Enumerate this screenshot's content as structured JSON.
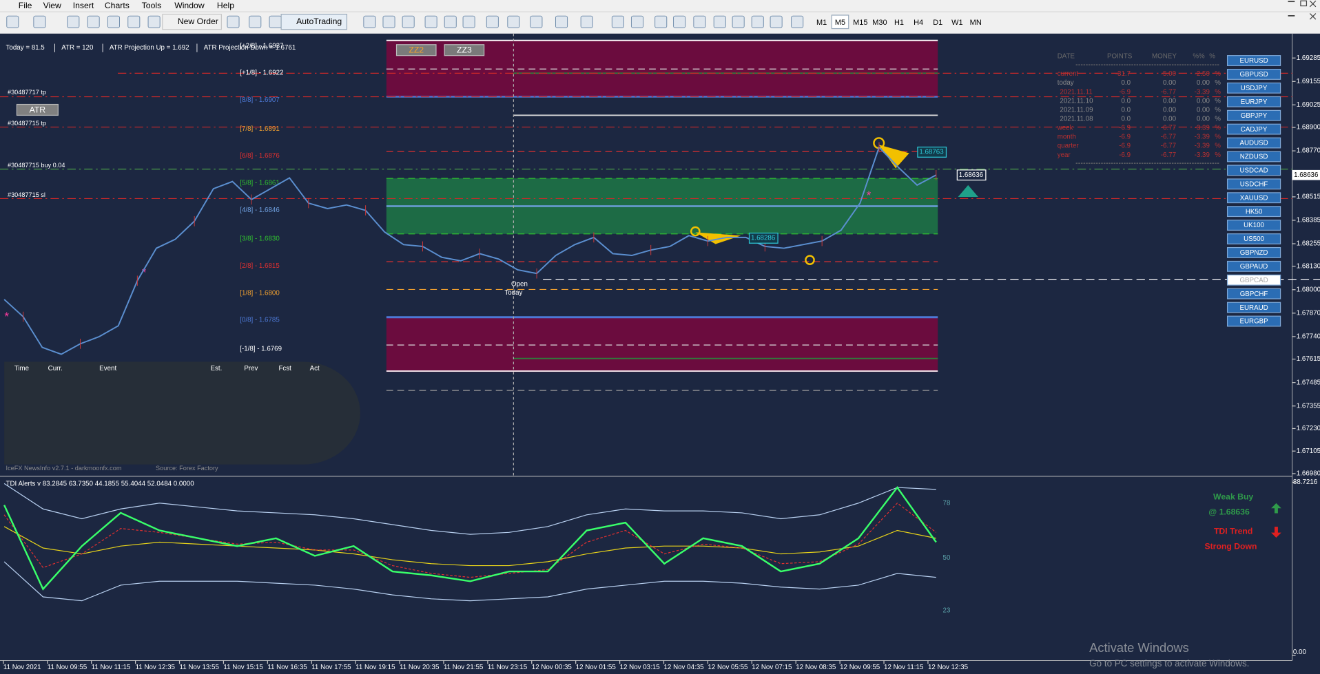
{
  "menu": [
    "File",
    "View",
    "Insert",
    "Charts",
    "Tools",
    "Window",
    "Help"
  ],
  "toolbar": {
    "new_order": "New Order",
    "autotrading": "AutoTrading",
    "timeframes": [
      "M1",
      "M5",
      "M15",
      "M30",
      "H1",
      "H4",
      "D1",
      "W1",
      "MN"
    ]
  },
  "chart": {
    "info": [
      "Today = 81.5",
      "ATR = 120",
      "ATR Projection Up = 1.692",
      "ATR Projection Down = 1.6761"
    ],
    "buttons": [
      "ATR",
      "ZZ2",
      "ZZ3"
    ],
    "orders": [
      "#30487717 tp",
      "#30487715 tp",
      "#30487715 buy 0.04",
      "#30487715 sl"
    ],
    "murrey": [
      {
        "label": "[+2/8] - 1.6937",
        "price": 1.6937,
        "color": "#ffffff"
      },
      {
        "label": "[+1/8] - 1.6922",
        "price": 1.6922,
        "color": "#ffffff"
      },
      {
        "label": "[8/8] - 1.6907",
        "price": 1.6907,
        "color": "#4d79d6"
      },
      {
        "label": "[7/8] - 1.6891",
        "price": 1.6891,
        "color": "#f0a030"
      },
      {
        "label": "[6/8] - 1.6876",
        "price": 1.6876,
        "color": "#e03030"
      },
      {
        "label": "[5/8] - 1.6861",
        "price": 1.6861,
        "color": "#30c030"
      },
      {
        "label": "[4/8] - 1.6846",
        "price": 1.6846,
        "color": "#6fa0e0"
      },
      {
        "label": "[3/8] - 1.6830",
        "price": 1.683,
        "color": "#30c030"
      },
      {
        "label": "[2/8] - 1.6815",
        "price": 1.6815,
        "color": "#e03030"
      },
      {
        "label": "[1/8] - 1.6800",
        "price": 1.68,
        "color": "#f0a030"
      },
      {
        "label": "[0/8] - 1.6785",
        "price": 1.6785,
        "color": "#4d79d6"
      },
      {
        "label": "[-1/8] - 1.6769",
        "price": 1.6769,
        "color": "#ffffff"
      }
    ],
    "ylim": [
      1.6697,
      1.6942
    ],
    "yticks": [
      {
        "value": 1.69285,
        "label": "1.69285"
      },
      {
        "value": 1.69155,
        "label": "1.69155"
      },
      {
        "value": 1.69025,
        "label": "1.69025"
      },
      {
        "value": 1.689,
        "label": "1.68900"
      },
      {
        "value": 1.6877,
        "label": "1.68770"
      },
      {
        "value": 1.68515,
        "label": "1.68515"
      },
      {
        "value": 1.68385,
        "label": "1.68385"
      },
      {
        "value": 1.68255,
        "label": "1.68255"
      },
      {
        "value": 1.6813,
        "label": "1.68130"
      },
      {
        "value": 1.68,
        "label": "1.68000"
      },
      {
        "value": 1.6787,
        "label": "1.67870"
      },
      {
        "value": 1.6774,
        "label": "1.67740"
      },
      {
        "value": 1.67615,
        "label": "1.67615"
      },
      {
        "value": 1.67485,
        "label": "1.67485"
      },
      {
        "value": 1.67355,
        "label": "1.67355"
      },
      {
        "value": 1.6723,
        "label": "1.67230"
      },
      {
        "value": 1.67105,
        "label": "1.67105"
      },
      {
        "value": 1.6698,
        "label": "1.66980"
      }
    ],
    "price": {
      "color": "#5b8fd0",
      "values": [
        1.67946,
        1.6785,
        1.6768,
        1.67642,
        1.677,
        1.6774,
        1.678,
        1.6805,
        1.6823,
        1.6828,
        1.6838,
        1.6856,
        1.686,
        1.685,
        1.6856,
        1.6862,
        1.6848,
        1.6845,
        1.6847,
        1.6844,
        1.6832,
        1.6825,
        1.6824,
        1.6818,
        1.6816,
        1.682,
        1.6817,
        1.6811,
        1.6809,
        1.6819,
        1.6825,
        1.6829,
        1.682,
        1.6819,
        1.6822,
        1.6824,
        1.683,
        1.6827,
        1.6829,
        1.6829,
        1.6824,
        1.6823,
        1.6825,
        1.6827,
        1.6833,
        1.6848,
        1.6879,
        1.6868,
        1.6858,
        1.68636
      ]
    },
    "current_price": {
      "value": 1.68636,
      "label": "1.68636"
    },
    "tags": [
      {
        "value": 1.68763,
        "label": "1.68763"
      },
      {
        "value": 1.68636,
        "label": "1.68636"
      },
      {
        "value": 1.68286,
        "label": "1.68286"
      }
    ],
    "open_label": "Open",
    "today_label": "Today",
    "xticks": [
      "11 Nov 2021",
      "11 Nov 09:55",
      "11 Nov 11:15",
      "11 Nov 12:35",
      "11 Nov 13:55",
      "11 Nov 15:15",
      "11 Nov 16:35",
      "11 Nov 17:55",
      "11 Nov 19:15",
      "11 Nov 20:35",
      "11 Nov 21:55",
      "11 Nov 23:15",
      "12 Nov 00:35",
      "12 Nov 01:55",
      "12 Nov 03:15",
      "12 Nov 04:35",
      "12 Nov 05:55",
      "12 Nov 07:15",
      "12 Nov 08:35",
      "12 Nov 09:55",
      "12 Nov 11:15",
      "12 Nov 12:35"
    ]
  },
  "news": {
    "headers": [
      "Time",
      "Curr.",
      "Event",
      "Est.",
      "Prev",
      "Fcst",
      "Act"
    ],
    "footer": "IceFX NewsInfo v2.7.1 - darkmoonfx.com",
    "source": "Source: Forex Factory"
  },
  "stats": {
    "headers": [
      "DATE",
      "POINTS",
      "MONEY",
      "%%",
      "%"
    ],
    "rows": [
      {
        "cells": [
          "current",
          "-31.7",
          "-5.00",
          "-2.50",
          "%"
        ],
        "color": "#b83030"
      },
      {
        "cells": [
          "today",
          "0.0",
          "0.00",
          "0.00",
          "%"
        ],
        "color": "#8a8a8a"
      },
      {
        "cells": [
          "2021.11.11",
          "-6.9",
          "-6.77",
          "-3.39",
          "%"
        ],
        "color": "#b83030"
      },
      {
        "cells": [
          "2021.11.10",
          "0.0",
          "0.00",
          "0.00",
          "%"
        ],
        "color": "#8a8a8a"
      },
      {
        "cells": [
          "2021.11.09",
          "0.0",
          "0.00",
          "0.00",
          "%"
        ],
        "color": "#8a8a8a"
      },
      {
        "cells": [
          "2021.11.08",
          "0.0",
          "0.00",
          "0.00",
          "%"
        ],
        "color": "#8a8a8a"
      },
      {
        "cells": [
          "week",
          "-6.9",
          "-6.77",
          "-3.39",
          "%"
        ],
        "color": "#b83030"
      },
      {
        "cells": [
          "month",
          "-6.9",
          "-6.77",
          "-3.39",
          "%"
        ],
        "color": "#b83030"
      },
      {
        "cells": [
          "quarter",
          "-6.9",
          "-6.77",
          "-3.39",
          "%"
        ],
        "color": "#b83030"
      },
      {
        "cells": [
          "year",
          "-6.9",
          "-6.77",
          "-3.39",
          "%"
        ],
        "color": "#b83030"
      }
    ]
  },
  "symbols": [
    "EURUSD",
    "GBPUSD",
    "USDJPY",
    "EURJPY",
    "GBPJPY",
    "CADJPY",
    "AUDUSD",
    "NZDUSD",
    "USDCAD",
    "USDCHF",
    "XAUUSD",
    "HK50",
    "UK100",
    "US500",
    "GBPNZD",
    "GBPAUD",
    "GBPCAD",
    "GBPCHF",
    "EURAUD",
    "EURGBP"
  ],
  "active_symbol": "GBPCAD",
  "tdi": {
    "title": "TDI Alerts v 83.2845 63.7350 44.1855 55.4044 52.0484 0.0000",
    "ylim": [
      0,
      88.7216
    ],
    "yticks": [
      {
        "value": 88.7216,
        "label": "88.7216"
      },
      78,
      50,
      23,
      {
        "value": 0,
        "label": "0.00"
      }
    ],
    "series": [
      {
        "name": "upper",
        "color": "#b8d0f0",
        "values": [
          88,
          75,
          70,
          75,
          78,
          76,
          74,
          73,
          72,
          70,
          67,
          64,
          62,
          63,
          66,
          72,
          75,
          74,
          74,
          73,
          70,
          72,
          78,
          86,
          85
        ]
      },
      {
        "name": "lower",
        "color": "#b8d0f0",
        "values": [
          48,
          30,
          28,
          36,
          38,
          38,
          38,
          37,
          36,
          34,
          31,
          29,
          28,
          29,
          30,
          34,
          36,
          38,
          38,
          37,
          35,
          34,
          36,
          42,
          40
        ]
      },
      {
        "name": "slow",
        "color": "#e6d21a",
        "values": [
          66,
          55,
          52,
          56,
          58,
          57,
          56,
          55,
          54,
          52,
          49,
          47,
          46,
          46,
          48,
          52,
          55,
          56,
          56,
          55,
          52,
          53,
          56,
          64,
          60
        ]
      },
      {
        "name": "signal",
        "color": "#e03030",
        "values": [
          72,
          45,
          52,
          65,
          63,
          60,
          57,
          58,
          54,
          54,
          46,
          42,
          40,
          42,
          44,
          58,
          64,
          52,
          57,
          55,
          47,
          48,
          57,
          78,
          63
        ]
      },
      {
        "name": "rsi",
        "color": "#39ff6a",
        "values": [
          77,
          34,
          56,
          73,
          64,
          60,
          56,
          60,
          51,
          56,
          43,
          41,
          38,
          43,
          43,
          64,
          68,
          47,
          60,
          56,
          43,
          47,
          60,
          86,
          58
        ]
      }
    ],
    "signal": {
      "status": "Weak Buy",
      "price": "@ 1.68636",
      "trend": "TDI Trend",
      "trend_status": "Strong Down"
    }
  },
  "watermark": {
    "title": "Activate Windows",
    "subtitle": "Go to PC settings to activate Windows."
  }
}
